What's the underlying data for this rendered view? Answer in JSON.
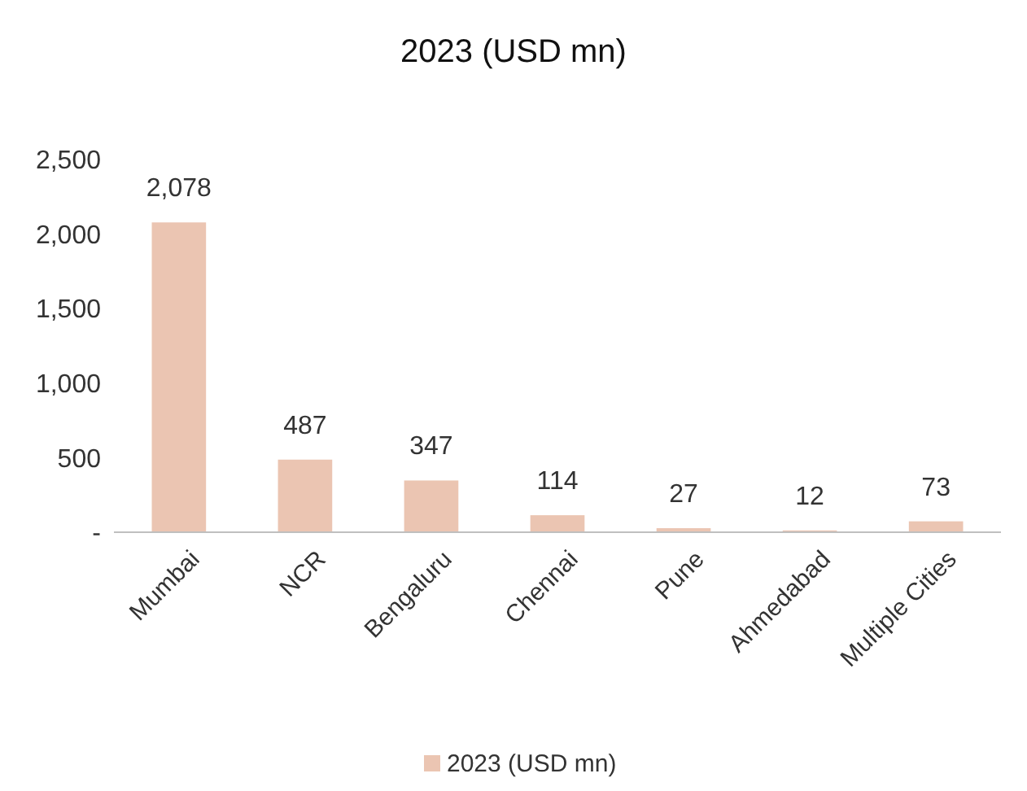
{
  "chart_data": {
    "type": "bar",
    "title": "2023 (USD mn)",
    "categories": [
      "Mumbai",
      "NCR",
      "Bengaluru",
      "Chennai",
      "Pune",
      "Ahmedabad",
      "Multiple Cities"
    ],
    "series": [
      {
        "name": "2023 (USD mn)",
        "color": "#ebc5b2",
        "values": [
          2078,
          487,
          347,
          114,
          27,
          12,
          73
        ],
        "value_labels": [
          "2,078",
          "487",
          "347",
          "114",
          "27",
          "12",
          "73"
        ]
      }
    ],
    "ylim": [
      0,
      2500
    ],
    "yticks": [
      {
        "value": 0,
        "label": "-"
      },
      {
        "value": 500,
        "label": "500"
      },
      {
        "value": 1000,
        "label": "1,000"
      },
      {
        "value": 1500,
        "label": "1,500"
      },
      {
        "value": 2000,
        "label": "2,000"
      },
      {
        "value": 2500,
        "label": "2,500"
      }
    ],
    "grid": false,
    "legend": "bottom"
  }
}
